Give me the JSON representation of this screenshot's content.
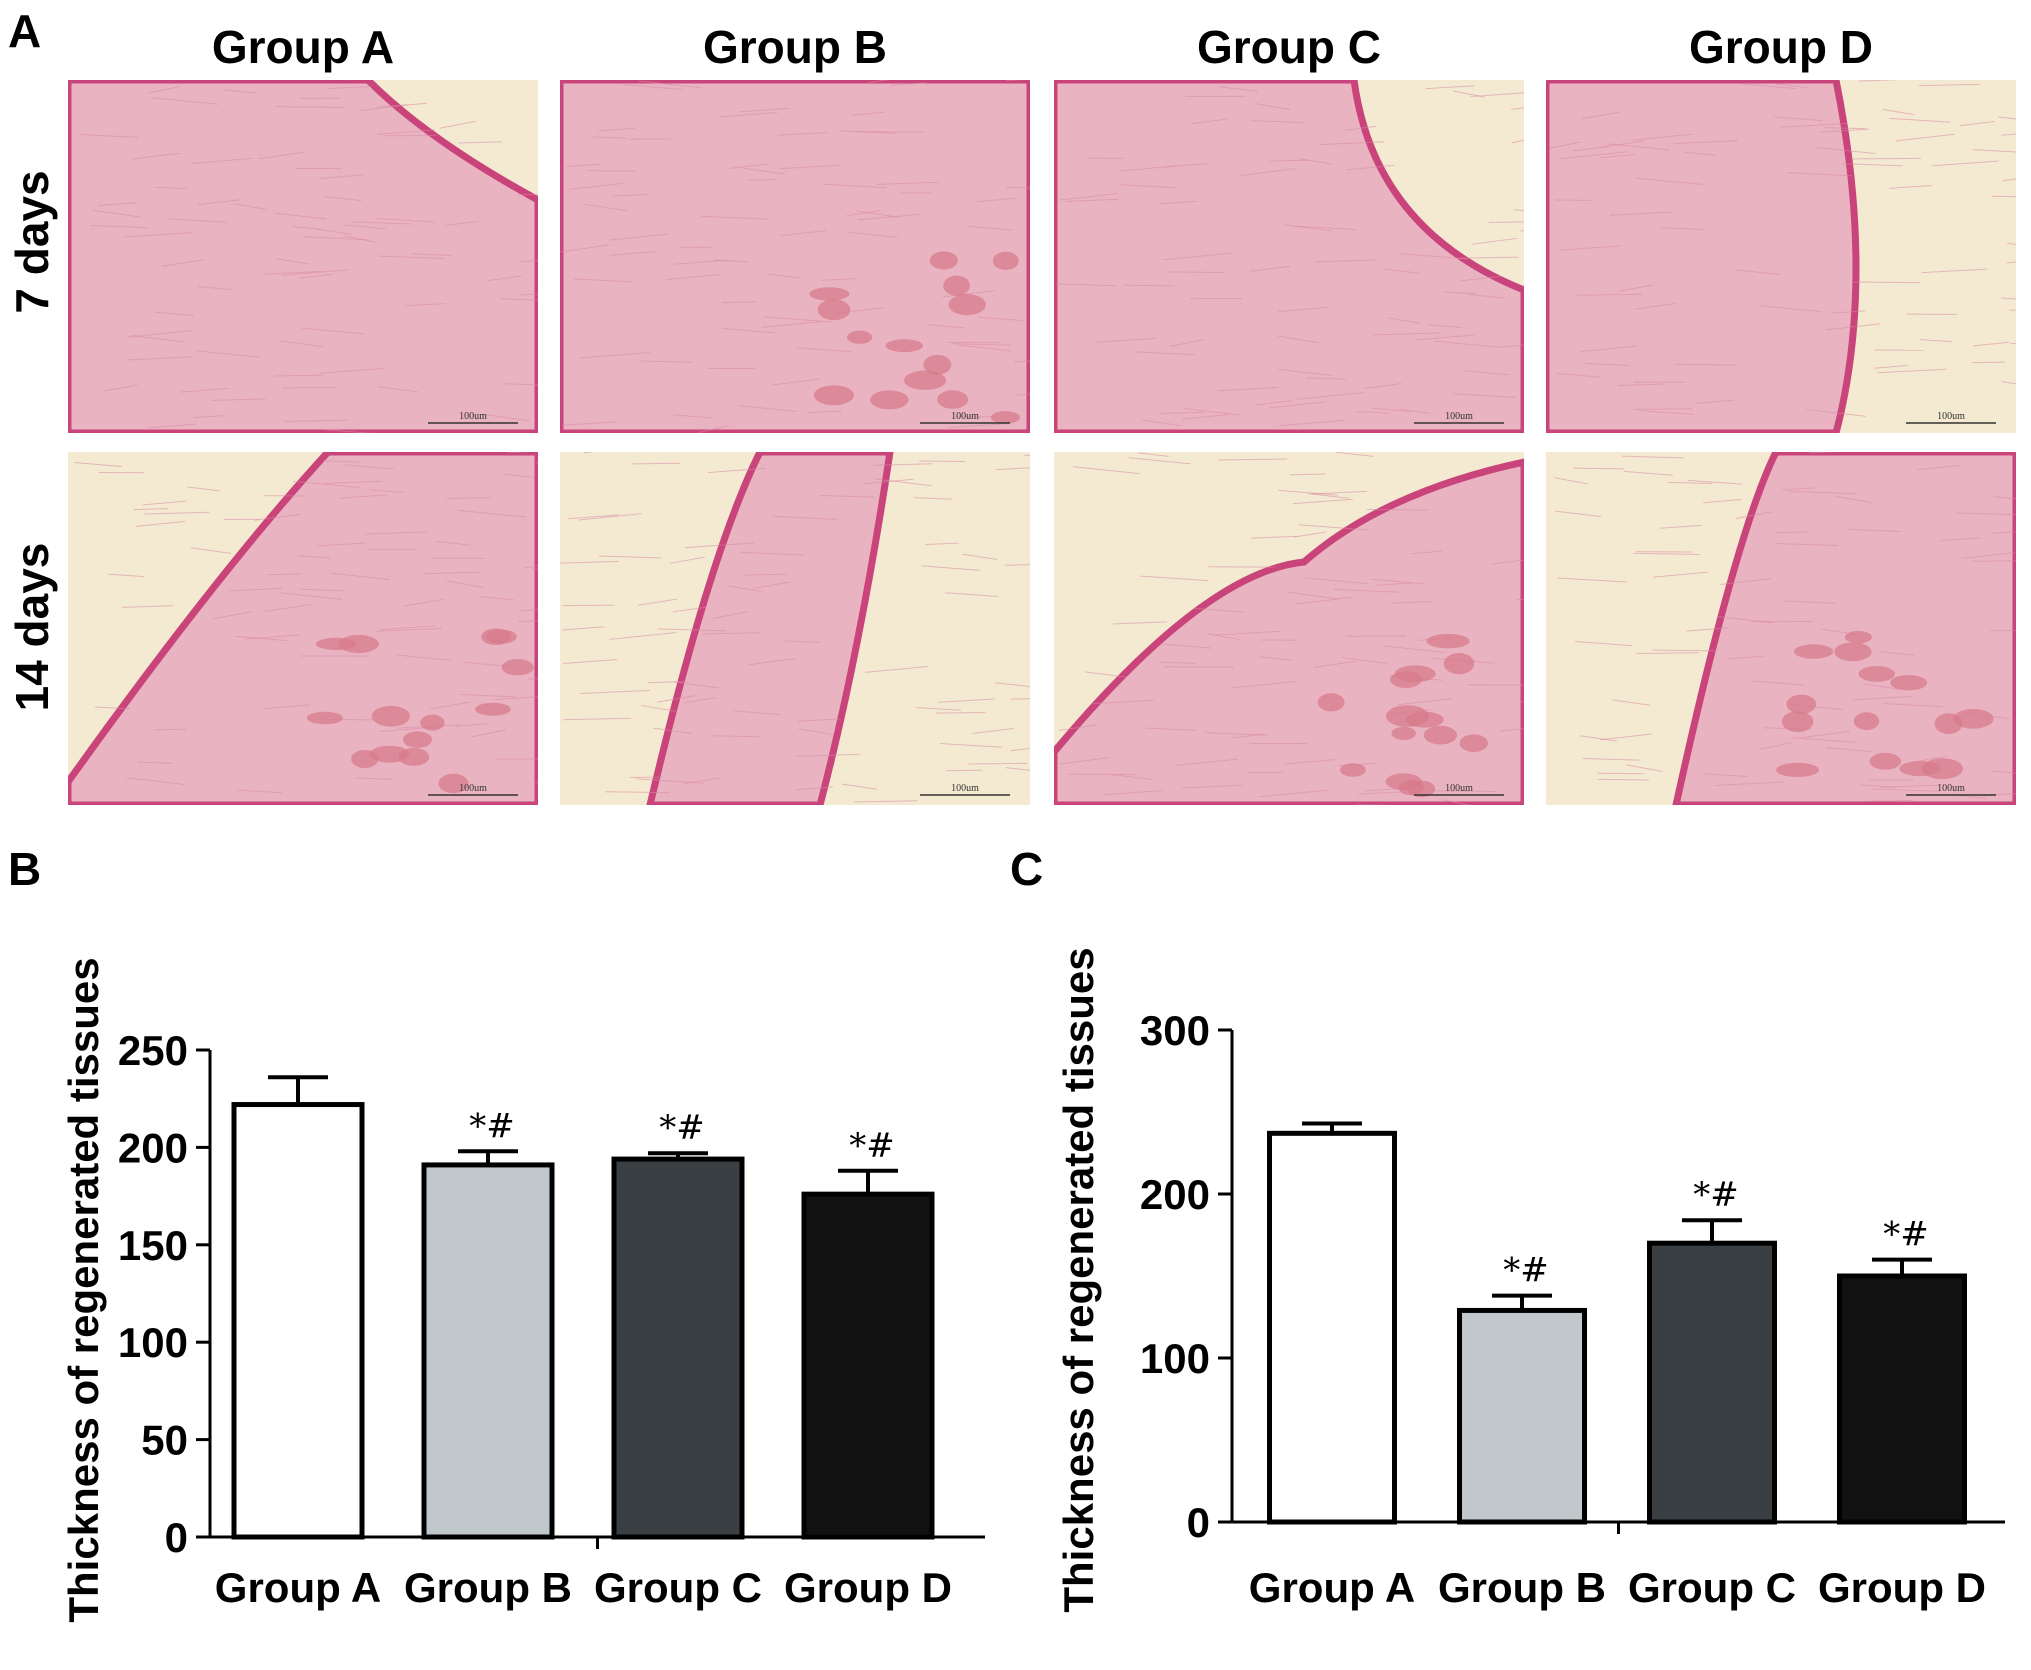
{
  "panels": {
    "A": "A",
    "B": "B",
    "C": "C"
  },
  "figure_a": {
    "columns": [
      "Group A",
      "Group B",
      "Group C",
      "Group D"
    ],
    "rows": [
      "7 days",
      "14 days"
    ],
    "scale_label": "100um",
    "tissue_colors": {
      "background": "#f4ead2",
      "stroma": "#e9b3c2",
      "epidermis": "#c9447a",
      "muscle": "#d77b8b"
    }
  },
  "chart_data": [
    {
      "type": "bar",
      "panel": "B",
      "ylabel": "Thickness of regenerated tissues",
      "categories": [
        "Group A",
        "Group B",
        "Group C",
        "Group D"
      ],
      "values": [
        222,
        191,
        194,
        176
      ],
      "errors": [
        14,
        7,
        3,
        12
      ],
      "annotations": [
        "",
        "*#",
        "*#",
        "*#"
      ],
      "ylim": [
        0,
        250
      ],
      "yticks": [
        0,
        50,
        100,
        150,
        200,
        250
      ],
      "bar_colors": [
        "#ffffff",
        "#c0c8cb",
        "#3a3f44",
        "#111111"
      ],
      "grid": false
    },
    {
      "type": "bar",
      "panel": "C",
      "ylabel": "Thickness of regenerated tissues",
      "categories": [
        "Group A",
        "Group B",
        "Group C",
        "Group D"
      ],
      "values": [
        237,
        129,
        170,
        150
      ],
      "errors": [
        6,
        9,
        14,
        10
      ],
      "annotations": [
        "",
        "*#",
        "*#",
        "*#"
      ],
      "ylim": [
        0,
        300
      ],
      "yticks": [
        0,
        100,
        200,
        300
      ],
      "bar_colors": [
        "#ffffff",
        "#c0c8cb",
        "#3a3f44",
        "#111111"
      ],
      "grid": false
    }
  ]
}
